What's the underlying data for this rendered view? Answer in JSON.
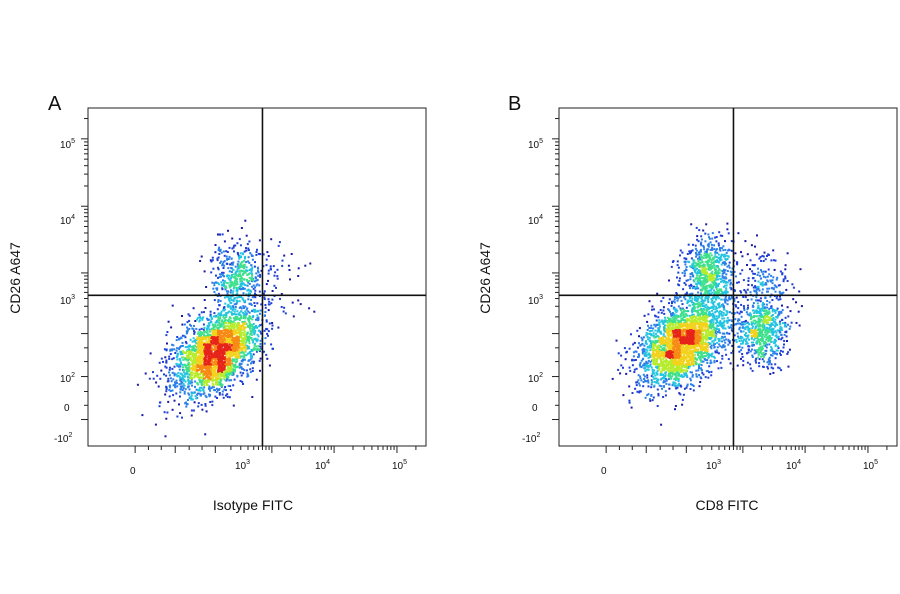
{
  "chart_data": [
    {
      "type": "scatter",
      "panel_label": "A",
      "xlabel": "Isotype FITC",
      "ylabel": "CD26 A647",
      "x_ticks": [
        "0",
        "10^3",
        "10^4",
        "10^5"
      ],
      "y_ticks": [
        "10^5",
        "10^4",
        "10^3",
        "10^2",
        "0",
        "-10^2"
      ],
      "xscale": "biexponential",
      "yscale": "biexponential",
      "xlim": [
        -600,
        250000
      ],
      "ylim": [
        -250,
        250000
      ],
      "quadrant_gate": {
        "x": 700,
        "y": 450
      },
      "color_scheme": "density (blue-cyan-green-yellow-red)",
      "populations": [
        {
          "x_center": 100,
          "y_center": 40,
          "count": 2600
        },
        {
          "x_center": 250,
          "y_center": 900,
          "count": 450
        },
        {
          "x_center": 1500,
          "y_center": 1000,
          "count": 40
        }
      ]
    },
    {
      "type": "scatter",
      "panel_label": "B",
      "xlabel": "CD8 FITC",
      "ylabel": "CD26 A647",
      "x_ticks": [
        "0",
        "10^3",
        "10^4",
        "10^5"
      ],
      "y_ticks": [
        "10^5",
        "10^4",
        "10^3",
        "10^2",
        "0",
        "-10^2"
      ],
      "xscale": "biexponential",
      "yscale": "biexponential",
      "xlim": [
        -600,
        250000
      ],
      "ylim": [
        -250,
        250000
      ],
      "quadrant_gate": {
        "x": 700,
        "y": 450
      },
      "color_scheme": "density (blue-cyan-green-yellow-red)",
      "populations": [
        {
          "x_center": 80,
          "y_center": 70,
          "count": 2600
        },
        {
          "x_center": 250,
          "y_center": 1000,
          "count": 700
        },
        {
          "x_center": 2000,
          "y_center": 120,
          "count": 650
        },
        {
          "x_center": 2200,
          "y_center": 700,
          "count": 150
        }
      ]
    }
  ]
}
